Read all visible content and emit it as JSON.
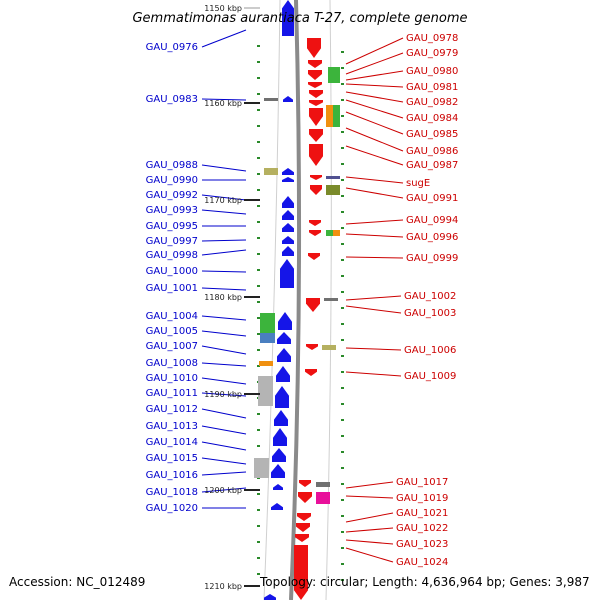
{
  "title": "Gemmatimonas aurantiaca T-27, complete genome",
  "accession": "Accession: NC_012489",
  "summary": "Topology: circular; Length: 4,636,964 bp; Genes: 3,987",
  "colors": {
    "backbone": "#8a8a8a",
    "forward_gene": "#1515e8",
    "reverse_gene": "#ee1111",
    "tick": "#2a8a2a",
    "left_label": "#0000cc",
    "right_label": "#cc0000"
  },
  "scale_ticks": [
    "1150 kbp",
    "1160 kbp",
    "1170 kbp",
    "1180 kbp",
    "1190 kbp",
    "1200 kbp",
    "1210 kbp"
  ],
  "left_genes": [
    "GAU_0976",
    "GAU_0983",
    "GAU_0988",
    "GAU_0990",
    "GAU_0992",
    "GAU_0993",
    "GAU_0995",
    "GAU_0997",
    "GAU_0998",
    "GAU_1000",
    "GAU_1001",
    "GAU_1004",
    "GAU_1005",
    "GAU_1007",
    "GAU_1008",
    "GAU_1010",
    "GAU_1011",
    "GAU_1012",
    "GAU_1013",
    "GAU_1014",
    "GAU_1015",
    "GAU_1016",
    "GAU_1018",
    "GAU_1020"
  ],
  "right_genes": [
    "GAU_0978",
    "GAU_0979",
    "GAU_0980",
    "GAU_0981",
    "GAU_0982",
    "GAU_0984",
    "GAU_0985",
    "GAU_0986",
    "GAU_0987",
    "sugE",
    "GAU_0991",
    "GAU_0994",
    "GAU_0996",
    "GAU_0999",
    "GAU_1002",
    "GAU_1003",
    "GAU_1006",
    "GAU_1009",
    "GAU_1017",
    "GAU_1019",
    "GAU_1021",
    "GAU_1022",
    "GAU_1023",
    "GAU_1024"
  ]
}
